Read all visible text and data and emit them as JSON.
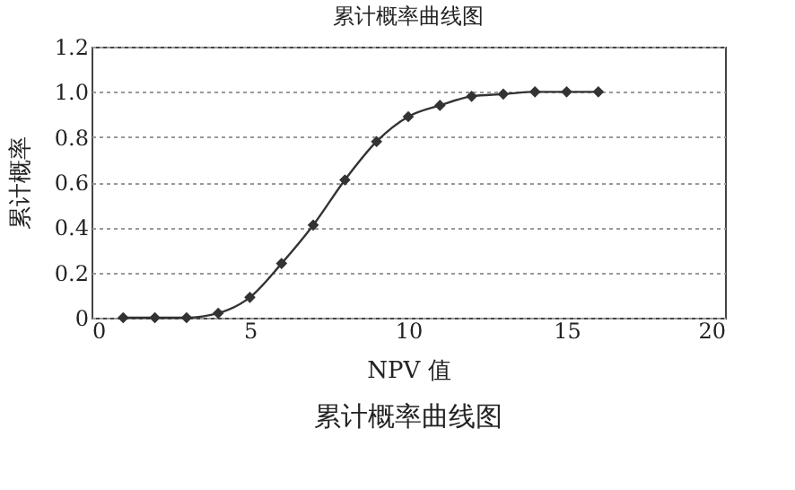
{
  "chart_data": {
    "type": "line",
    "title": "累计概率曲线图",
    "xlabel": "NPV 值",
    "ylabel": "累计概率",
    "x": [
      1,
      2,
      3,
      4,
      5,
      6,
      7,
      8,
      9,
      10,
      11,
      12,
      13,
      14,
      15,
      16
    ],
    "series": [
      {
        "color": "#333333",
        "values": [
          0,
          0,
          0,
          0.02,
          0.09,
          0.24,
          0.41,
          0.61,
          0.78,
          0.89,
          0.94,
          0.98,
          0.99,
          1.0,
          1.0,
          1.0
        ]
      }
    ],
    "xlim": [
      0,
      20
    ],
    "xticks": [
      0,
      5,
      10,
      15,
      20
    ],
    "ylim": [
      0,
      1.2
    ],
    "yticks": [
      0,
      {
        "value": 0.2,
        "label": "0.2"
      },
      {
        "value": 0.4,
        "label": "0.4"
      },
      {
        "value": 0.6,
        "label": "0.6"
      },
      {
        "value": 0.8,
        "label": "0.8"
      },
      {
        "value": 1.0,
        "label": "1.0"
      },
      {
        "value": 1.2,
        "label": "1.2"
      }
    ],
    "grid": "y",
    "marker": "diamond",
    "line_style": "solid",
    "annotations": [
      "累计概率曲线图"
    ]
  }
}
